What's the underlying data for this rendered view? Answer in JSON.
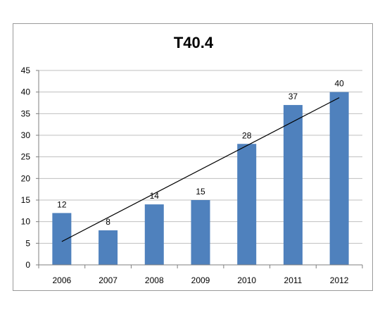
{
  "chart_data": {
    "type": "bar",
    "title": "T40.4",
    "xlabel": "",
    "ylabel": "",
    "categories": [
      "2006",
      "2007",
      "2008",
      "2009",
      "2010",
      "2011",
      "2012"
    ],
    "values": [
      12,
      8,
      14,
      15,
      28,
      37,
      40
    ],
    "data_labels": [
      "12",
      "8",
      "14",
      "15",
      "28",
      "37",
      "40"
    ],
    "ylim": [
      0,
      45
    ],
    "y_ticks": [
      "0",
      "5",
      "10",
      "15",
      "20",
      "25",
      "30",
      "35",
      "40",
      "45"
    ],
    "grid": true,
    "legend": "none",
    "trendline": {
      "type": "linear",
      "start_value": 5.4,
      "end_value": 38.7
    },
    "bar_color": "#4f81bd",
    "trendline_color": "#000000",
    "grid_color": "#bfbfbf"
  }
}
